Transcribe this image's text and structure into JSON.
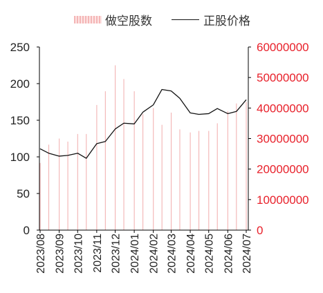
{
  "legend": {
    "bar_label": "做空股数",
    "line_label": "正股价格"
  },
  "colors": {
    "bar": "#f3b3b3",
    "line": "#111111",
    "left_axis_text": "#222222",
    "right_axis_text": "#e8202a",
    "axis_line": "#000000"
  },
  "chart_data": {
    "type": "bar+line",
    "title": "",
    "legend_position": "top",
    "grid": false,
    "x_tick_labels": [
      "2023/08",
      "2023/09",
      "2023/10",
      "2023/11",
      "2023/12",
      "2024/01",
      "2024/02",
      "2024/03",
      "2024/04",
      "2024/05",
      "2024/06",
      "2024/07"
    ],
    "left_axis": {
      "ylim": [
        0,
        250
      ],
      "ticks": [
        0,
        50,
        100,
        150,
        200,
        250
      ]
    },
    "right_axis": {
      "ylim": [
        0,
        60000000
      ],
      "ticks": [
        0,
        10000000,
        20000000,
        30000000,
        40000000,
        50000000,
        60000000
      ],
      "tick_labels": [
        "0",
        "10000000",
        "20000000",
        "30000000",
        "40000000",
        "50000000",
        "60000000"
      ]
    },
    "series": [
      {
        "name": "做空股数",
        "type": "bar",
        "axis": "right",
        "x": [
          "2023/08/01",
          "2023/08/15",
          "2023/09/01",
          "2023/09/15",
          "2023/10/01",
          "2023/10/15",
          "2023/11/01",
          "2023/11/15",
          "2023/12/01",
          "2023/12/15",
          "2024/01/01",
          "2024/01/15",
          "2024/02/01",
          "2024/02/15",
          "2024/03/01",
          "2024/03/15",
          "2024/04/01",
          "2024/04/15",
          "2024/05/01",
          "2024/05/15",
          "2024/06/01",
          "2024/06/15",
          "2024/07/01"
        ],
        "values": [
          22000000,
          28000000,
          30000000,
          29000000,
          31500000,
          31500000,
          41000000,
          45500000,
          54000000,
          49500000,
          45500000,
          38000000,
          40000000,
          34500000,
          38500000,
          33000000,
          32000000,
          32500000,
          32500000,
          35000000,
          39000000,
          41500000,
          42000000
        ]
      },
      {
        "name": "正股价格",
        "type": "line",
        "axis": "left",
        "x": [
          "2023/08/01",
          "2023/08/15",
          "2023/09/01",
          "2023/09/15",
          "2023/10/01",
          "2023/10/15",
          "2023/11/01",
          "2023/11/15",
          "2023/12/01",
          "2023/12/15",
          "2024/01/01",
          "2024/01/15",
          "2024/02/01",
          "2024/02/15",
          "2024/03/01",
          "2024/03/15",
          "2024/04/01",
          "2024/04/15",
          "2024/05/01",
          "2024/05/15",
          "2024/06/01",
          "2024/06/15",
          "2024/07/01"
        ],
        "values": [
          111,
          105,
          101,
          102,
          105,
          98,
          118,
          121,
          138,
          146,
          145,
          161,
          171,
          192,
          190,
          180,
          160,
          158,
          159,
          166,
          159,
          162,
          178
        ]
      }
    ]
  }
}
